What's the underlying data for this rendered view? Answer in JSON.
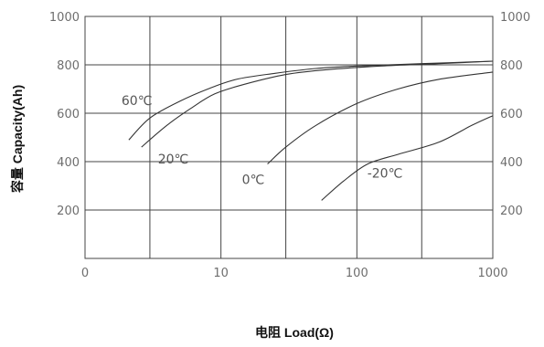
{
  "chart_data": {
    "type": "line",
    "xlabel": "电阻 Load(Ω)",
    "ylabel": "容量 Capacity(Ah)",
    "x_scale": "log",
    "xlim": [
      1,
      1000
    ],
    "ylim": [
      0,
      1000
    ],
    "x_ticks": [
      1,
      10,
      100,
      1000
    ],
    "x_tick_labels": [
      "0",
      "10",
      "100",
      "1000"
    ],
    "y_ticks": [
      200,
      400,
      600,
      800,
      1000
    ],
    "y_tick_labels": [
      "200",
      "400",
      "600",
      "800",
      "1000"
    ],
    "y_ticks_right": [
      200,
      400,
      600,
      800,
      1000
    ],
    "grid": true,
    "series": [
      {
        "name": "60℃",
        "x": [
          2.1,
          3,
          5,
          8,
          13,
          25,
          50,
          100,
          300,
          1000
        ],
        "y": [
          490,
          580,
          650,
          700,
          740,
          765,
          785,
          795,
          805,
          815
        ]
      },
      {
        "name": "20℃",
        "x": [
          2.6,
          4,
          6,
          9,
          15,
          30,
          60,
          150,
          400,
          1000
        ],
        "y": [
          460,
          550,
          620,
          680,
          720,
          760,
          780,
          795,
          805,
          815
        ]
      },
      {
        "name": "0℃",
        "x": [
          22,
          30,
          50,
          100,
          200,
          400,
          1000
        ],
        "y": [
          390,
          460,
          550,
          640,
          700,
          740,
          770
        ]
      },
      {
        "name": "-20℃",
        "x": [
          55,
          80,
          120,
          200,
          400,
          700,
          1000
        ],
        "y": [
          240,
          320,
          390,
          430,
          480,
          550,
          590
        ]
      }
    ],
    "annotations": [
      "60℃",
      "20℃",
      "0℃",
      "-20℃"
    ]
  }
}
